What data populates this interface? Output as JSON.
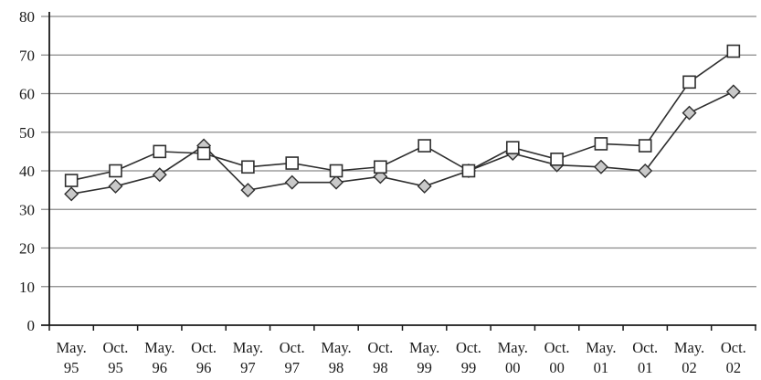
{
  "chart_data": {
    "type": "line",
    "title": "",
    "categories": [
      "May. 95",
      "Oct. 95",
      "May. 96",
      "Oct. 96",
      "May. 97",
      "Oct. 97",
      "May. 98",
      "Oct. 98",
      "May. 99",
      "Oct. 99",
      "May. 00",
      "Oct. 00",
      "May. 01",
      "Oct. 01",
      "May. 02",
      "Oct. 02"
    ],
    "series": [
      {
        "name": "diamond-marker-series",
        "marker": "diamond",
        "marker_fill": "#c9c9c9",
        "values": [
          34,
          36,
          39,
          46.5,
          35,
          37,
          37,
          38.5,
          36,
          40,
          44.5,
          41.5,
          41,
          40,
          55,
          60.5
        ]
      },
      {
        "name": "square-marker-series",
        "marker": "square",
        "marker_fill": "#ffffff",
        "values": [
          37.5,
          40,
          45,
          44.5,
          41,
          42,
          40,
          41,
          46.5,
          40,
          46,
          43,
          47,
          46.5,
          63,
          71
        ]
      }
    ],
    "ylim": [
      0,
      80
    ],
    "yticks": [
      0,
      10,
      20,
      30,
      40,
      50,
      60,
      70,
      80
    ],
    "grid": true,
    "legend_position": "none",
    "colors": {
      "line": "#2e2e2e",
      "grid": "#8a8a8a",
      "axis": "#1a1a1a",
      "text": "#1a1a1a",
      "background": "#ffffff"
    }
  }
}
